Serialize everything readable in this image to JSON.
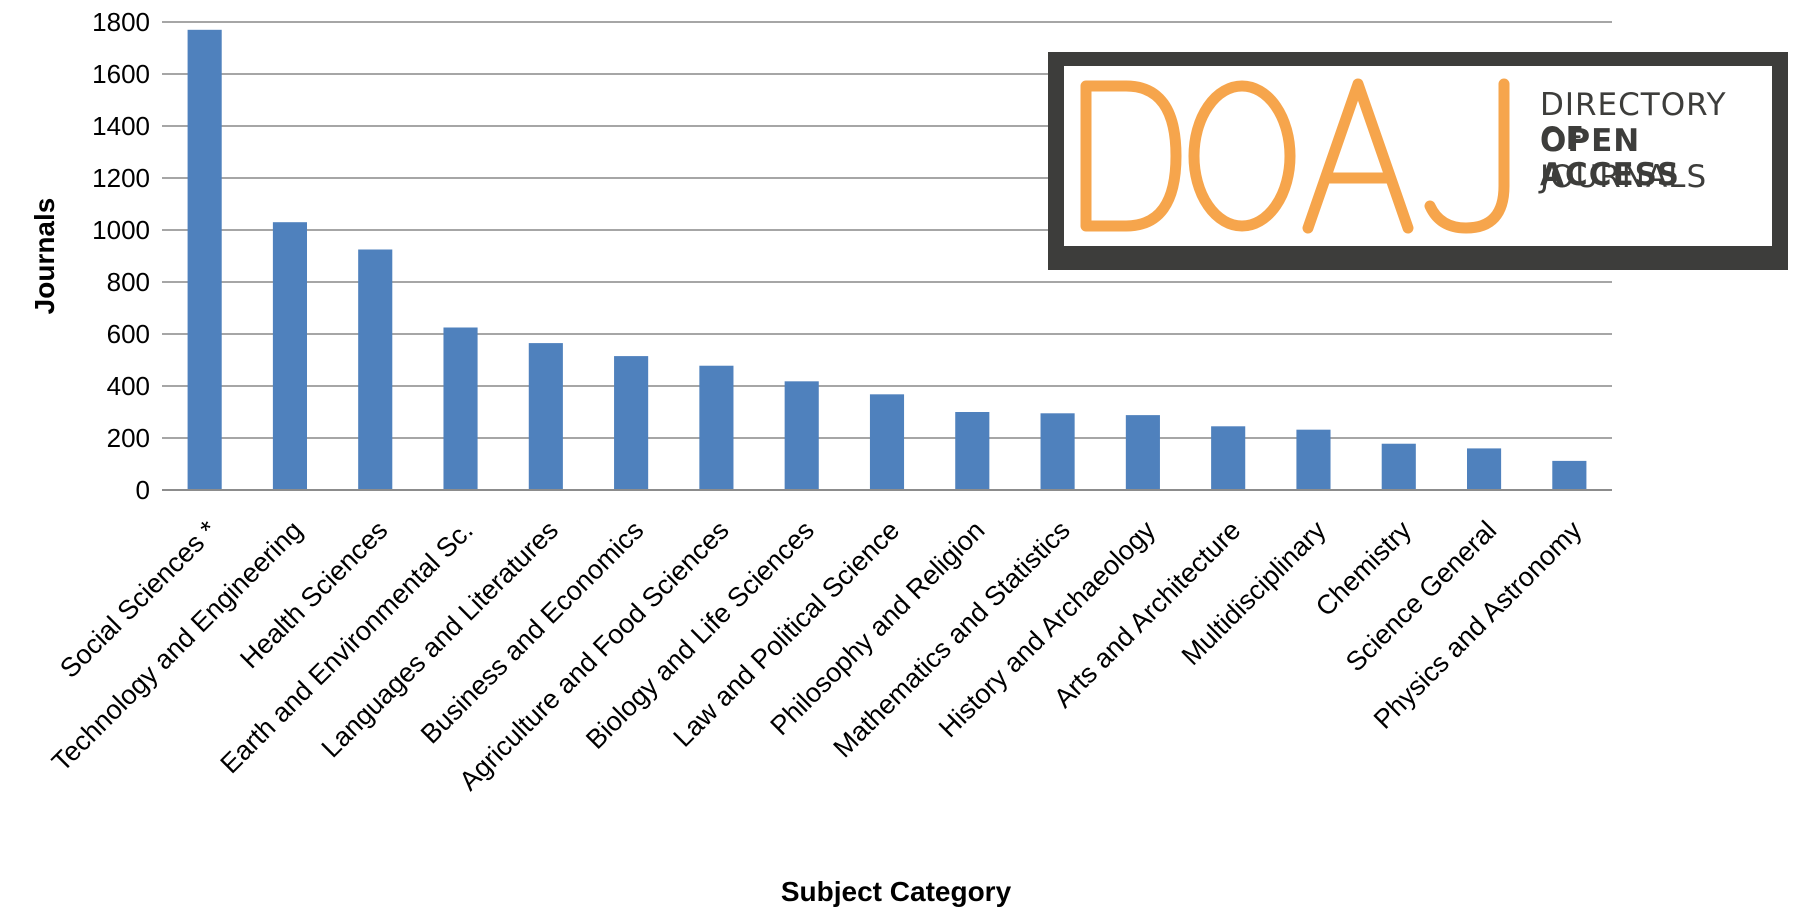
{
  "chart_data": {
    "type": "bar",
    "categories": [
      "Social Sciences *",
      "Technology and Engineering",
      "Health Sciences",
      "Earth and Environmental Sc.",
      "Languages and Literatures",
      "Business and Economics",
      "Agriculture and Food Sciences",
      "Biology and Life Sciences",
      "Law and Political Science",
      "Philosophy and Religion",
      "Mathematics and Statistics",
      "History and Archaeology",
      "Arts and Architecture",
      "Multidisciplinary",
      "Chemistry",
      "Science General",
      "Physics and Astronomy"
    ],
    "values": [
      1770,
      1030,
      925,
      625,
      565,
      515,
      478,
      418,
      368,
      300,
      295,
      288,
      245,
      232,
      178,
      160,
      112
    ],
    "xlabel": "Subject Category",
    "ylabel": "Journals",
    "ylim": [
      0,
      1800
    ],
    "yticks": [
      0,
      200,
      400,
      600,
      800,
      1000,
      1200,
      1400,
      1600,
      1800
    ],
    "grid": true,
    "bar_color": "#4f81bd"
  },
  "logo": {
    "mark": "DOAJ",
    "line1": "DIRECTORY OF",
    "line2": "OPEN ACCESS",
    "line3": "JOURNALS",
    "mark_color": "#f6a54c",
    "frame_color": "#3d3d3b"
  }
}
